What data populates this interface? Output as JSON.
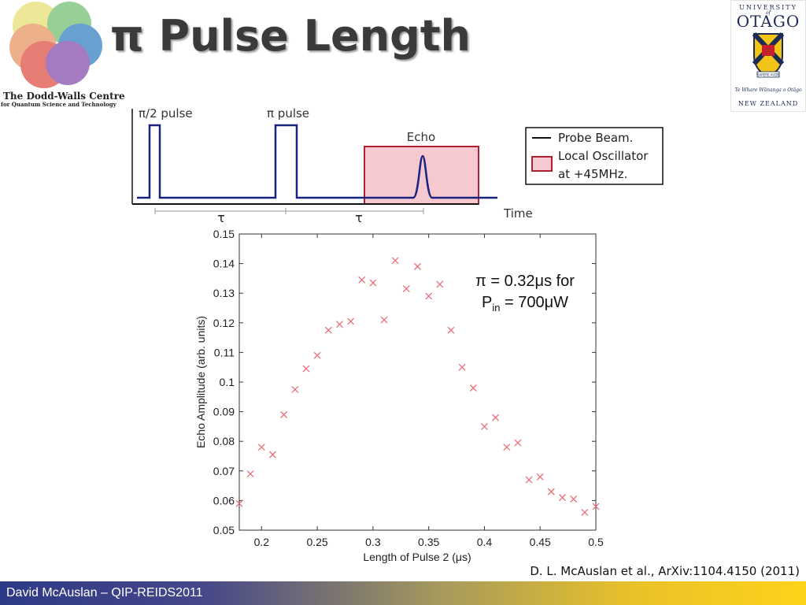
{
  "header": {
    "title": "π Pulse Length",
    "logo_left": {
      "line1": "The Dodd-Walls Centre",
      "line2": "for Quantum Science and Technology"
    },
    "logo_right": {
      "university": "UNIVERSITY",
      "of": "of",
      "name": "OTAGO",
      "motto": "Te Whare Wānanga o Otāgo",
      "country": "NEW ZEALAND",
      "crest_text": "SAPERE AUDE"
    }
  },
  "diagram": {
    "pulse1_label": "π/2 pulse",
    "pulse2_label": "π pulse",
    "echo_label": "Echo",
    "tau1_label": "τ",
    "tau2_label": "τ",
    "time_label": "Time",
    "legend": {
      "probe": "Probe Beam.",
      "lo_line1": "Local Oscillator",
      "lo_line2": "at +45MHz."
    },
    "colors": {
      "probe": "#1a237e",
      "lo_fill": "#f6c9d0",
      "lo_border": "#b0202e"
    }
  },
  "annotation": {
    "line1": "π = 0.32μs for",
    "line2_p": "P",
    "line2_sub": "in",
    "line2_rest": " = 700μW"
  },
  "citation": "D. L. McAuslan et al., ArXiv:1104.4150 (2011)",
  "footer": {
    "text": "David McAuslan – QIP-REIDS2011"
  },
  "chart_data": {
    "type": "scatter",
    "xlabel": "Length of Pulse 2 (μs)",
    "ylabel": "Echo Amplitude (arb. units)",
    "xlim": [
      0.18,
      0.5
    ],
    "ylim": [
      0.05,
      0.15
    ],
    "xticks": [
      "0.2",
      "0.25",
      "0.3",
      "0.35",
      "0.4",
      "0.45",
      "0.5"
    ],
    "xtick_values": [
      0.2,
      0.25,
      0.3,
      0.35,
      0.4,
      0.45,
      0.5
    ],
    "yticks": [
      "0.05",
      "0.06",
      "0.07",
      "0.08",
      "0.09",
      "0.1",
      "0.11",
      "0.12",
      "0.13",
      "0.14",
      "0.15"
    ],
    "ytick_values": [
      0.05,
      0.06,
      0.07,
      0.08,
      0.09,
      0.1,
      0.11,
      0.12,
      0.13,
      0.14,
      0.15
    ],
    "marker_color": "#e8707a",
    "x": [
      0.18,
      0.19,
      0.2,
      0.21,
      0.22,
      0.23,
      0.24,
      0.25,
      0.26,
      0.27,
      0.28,
      0.29,
      0.3,
      0.31,
      0.32,
      0.33,
      0.34,
      0.35,
      0.36,
      0.37,
      0.38,
      0.39,
      0.4,
      0.41,
      0.42,
      0.43,
      0.44,
      0.45,
      0.46,
      0.47,
      0.48,
      0.49,
      0.5
    ],
    "y": [
      0.059,
      0.069,
      0.078,
      0.0755,
      0.089,
      0.0975,
      0.1045,
      0.109,
      0.1175,
      0.1195,
      0.1205,
      0.1345,
      0.1335,
      0.121,
      0.141,
      0.1315,
      0.139,
      0.129,
      0.133,
      0.1175,
      0.105,
      0.098,
      0.085,
      0.088,
      0.078,
      0.0795,
      0.067,
      0.068,
      0.063,
      0.061,
      0.0605,
      0.056,
      0.058
    ]
  }
}
